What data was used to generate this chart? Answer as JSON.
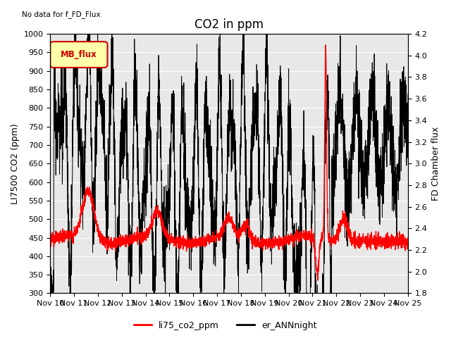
{
  "title": "CO2 in ppm",
  "top_left_text": "No data for f_FD_Flux",
  "ylabel_left": "LI7500 CO2 (ppm)",
  "ylabel_right": "FD Chamber flux",
  "ylim_left": [
    300,
    1000
  ],
  "ylim_right": [
    1.8,
    4.2
  ],
  "xlim": [
    0,
    15
  ],
  "xtick_labels": [
    "Nov 10",
    "Nov 11",
    "Nov 12",
    "Nov 13",
    "Nov 14",
    "Nov 15",
    "Nov 16",
    "Nov 17",
    "Nov 18",
    "Nov 19",
    "Nov 20",
    "Nov 21",
    "Nov 22",
    "Nov 23",
    "Nov 24",
    "Nov 25"
  ],
  "xtick_positions": [
    0,
    1,
    2,
    3,
    4,
    5,
    6,
    7,
    8,
    9,
    10,
    11,
    12,
    13,
    14,
    15
  ],
  "ytick_left": [
    300,
    350,
    400,
    450,
    500,
    550,
    600,
    650,
    700,
    750,
    800,
    850,
    900,
    950,
    1000
  ],
  "ytick_right": [
    1.8,
    2.0,
    2.2,
    2.4,
    2.6,
    2.8,
    3.0,
    3.2,
    3.4,
    3.6,
    3.8,
    4.0,
    4.2
  ],
  "legend_items": [
    {
      "label": "li75_co2_ppm",
      "color": "red"
    },
    {
      "label": "er_ANNnight",
      "color": "black"
    }
  ],
  "legend_box_label": "MB_flux",
  "legend_box_facecolor": "#ffffaa",
  "legend_box_edgecolor": "#cc0000",
  "plot_bg_color": "#e8e8e8",
  "grid_color": "white",
  "title_fontsize": 12,
  "axis_fontsize": 9,
  "tick_fontsize": 8
}
